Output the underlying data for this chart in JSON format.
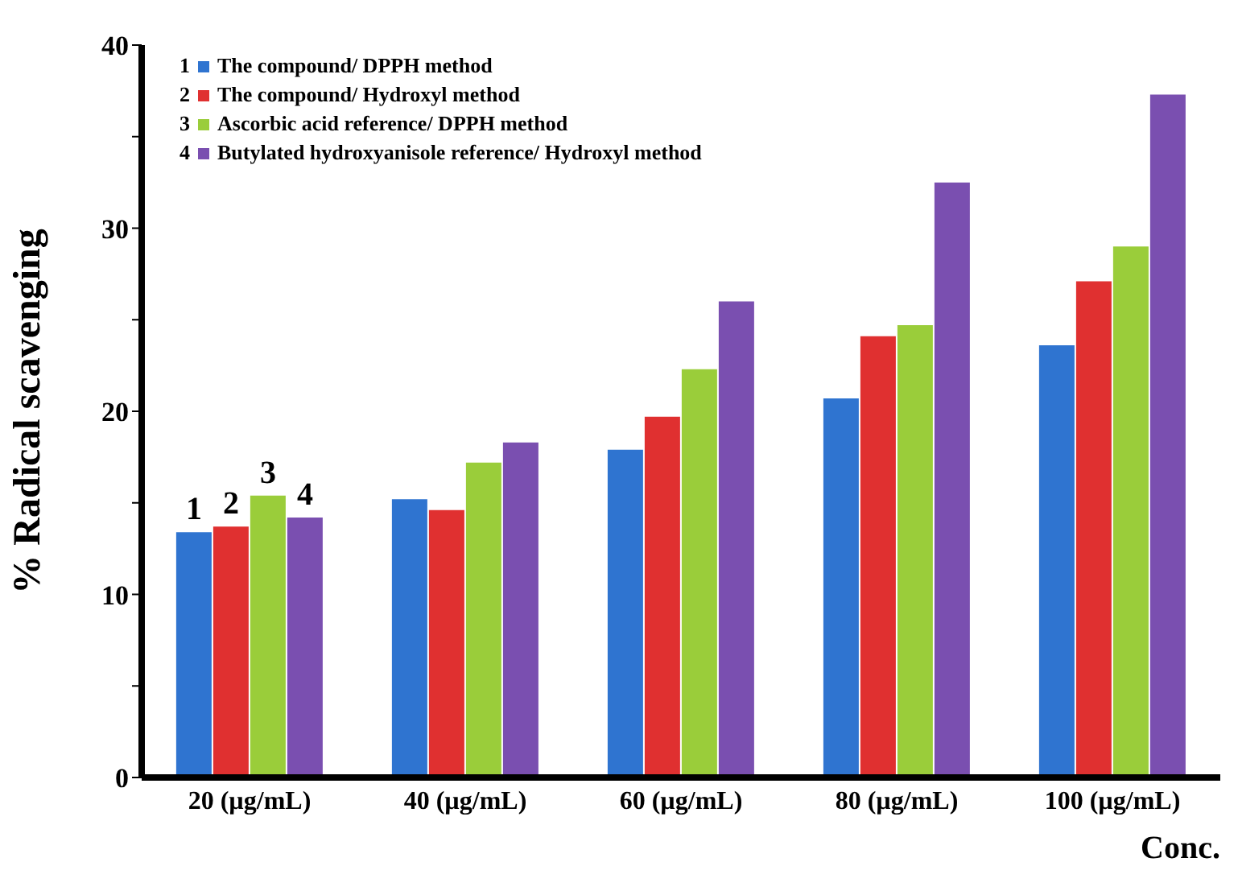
{
  "chart_data": {
    "type": "bar",
    "ylabel": "% Radical scavenging",
    "xlabel": "Conc.",
    "categories": [
      "20 (µg/mL)",
      "40 (µg/mL)",
      "60 (µg/mL)",
      "80 (µg/mL)",
      "100 (µg/mL)"
    ],
    "series": [
      {
        "name": "The compound/ DPPH method",
        "color": "#2f74d0",
        "values": [
          13.4,
          15.2,
          17.9,
          20.7,
          23.6
        ]
      },
      {
        "name": "The compound/ Hydroxyl method",
        "color": "#e03030",
        "values": [
          13.7,
          14.6,
          19.7,
          24.1,
          27.1
        ]
      },
      {
        "name": "Ascorbic acid reference/ DPPH method",
        "color": "#9acd3a",
        "values": [
          15.4,
          17.2,
          22.3,
          24.7,
          29.0
        ]
      },
      {
        "name": "Butylated hydroxyanisole reference/ Hydroxyl method",
        "color": "#7a4fb0",
        "values": [
          14.2,
          18.3,
          26.0,
          32.5,
          37.3
        ]
      }
    ],
    "annotations": [
      {
        "text": "1",
        "x": "20 (µg/mL)",
        "y": 13.4
      },
      {
        "text": "2",
        "x": "20 (µg/mL)",
        "y": 13.7
      },
      {
        "text": "3",
        "x": "20 (µg/mL)",
        "y": 15.4
      },
      {
        "text": "4",
        "x": "20 (µg/mL)",
        "y": 14.2
      }
    ],
    "ylim": [
      0,
      40
    ],
    "yticks": [
      0,
      {
        "value": 5,
        "label": null
      },
      10,
      {
        "value": 15,
        "label": null
      },
      20,
      {
        "value": 25,
        "label": null
      },
      30,
      {
        "value": 35,
        "label": null
      },
      40
    ],
    "grid": false,
    "legend": "top left"
  }
}
